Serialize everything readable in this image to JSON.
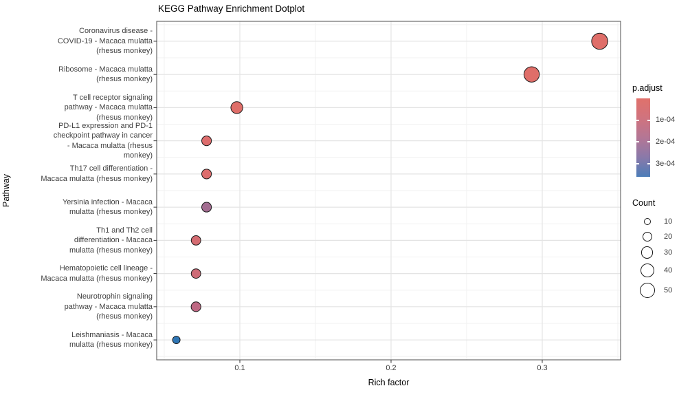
{
  "title": "KEGG Pathway Enrichment Dotplot",
  "x_axis": {
    "label": "Rich factor"
  },
  "y_axis": {
    "label": "Pathway"
  },
  "chart_data": {
    "type": "scatter",
    "title": "KEGG Pathway Enrichment Dotplot",
    "xlabel": "Rich factor",
    "ylabel": "Pathway",
    "xlim": [
      0.045,
      0.352
    ],
    "x_major_ticks": [
      0.1,
      0.2,
      0.3
    ],
    "x_tick_labels": [
      "0.1",
      "0.2",
      "0.3"
    ],
    "x_minor_ticks": [
      0.05,
      0.15,
      0.25,
      0.35
    ],
    "grid": true,
    "legend_position": "right",
    "points": [
      {
        "pathway": "Coronavirus disease - COVID-19 - Macaca mulatta (rhesus monkey)",
        "label_lines": [
          "Coronavirus disease -",
          "COVID-19 - Macaca mulatta",
          "(rhesus monkey)"
        ],
        "rich_factor": 0.338,
        "count": 55,
        "p_adjust": 2e-05,
        "color": "#DF6E69"
      },
      {
        "pathway": "Ribosome - Macaca mulatta (rhesus monkey)",
        "label_lines": [
          "Ribosome - Macaca mulatta",
          "(rhesus monkey)"
        ],
        "rich_factor": 0.293,
        "count": 50,
        "p_adjust": 2e-05,
        "color": "#DF6E69"
      },
      {
        "pathway": "T cell receptor signaling pathway - Macaca mulatta (rhesus monkey)",
        "label_lines": [
          "T cell receptor signaling",
          "pathway - Macaca mulatta",
          "(rhesus monkey)"
        ],
        "rich_factor": 0.098,
        "count": 30,
        "p_adjust": 2e-05,
        "color": "#DF6E69"
      },
      {
        "pathway": "PD-L1 expression and PD-1 checkpoint pathway in cancer - Macaca mulatta (rhesus monkey)",
        "label_lines": [
          "PD-L1 expression and PD-1",
          "checkpoint pathway in cancer",
          "- Macaca mulatta (rhesus",
          "monkey)"
        ],
        "rich_factor": 0.078,
        "count": 20,
        "p_adjust": 2.5e-05,
        "color": "#DD6D6D"
      },
      {
        "pathway": "Th17 cell differentiation - Macaca mulatta (rhesus monkey)",
        "label_lines": [
          "Th17 cell differentiation -",
          "Macaca mulatta (rhesus monkey)"
        ],
        "rich_factor": 0.078,
        "count": 20,
        "p_adjust": 2.5e-05,
        "color": "#DD6D6D"
      },
      {
        "pathway": "Yersinia infection - Macaca mulatta (rhesus monkey)",
        "label_lines": [
          "Yersinia infection - Macaca",
          "mulatta (rhesus monkey)"
        ],
        "rich_factor": 0.078,
        "count": 20,
        "p_adjust": 0.00018,
        "color": "#A26C90"
      },
      {
        "pathway": "Th1 and Th2 cell differentiation - Macaca mulatta (rhesus monkey)",
        "label_lines": [
          "Th1 and Th2 cell",
          "differentiation - Macaca",
          "mulatta (rhesus monkey)"
        ],
        "rich_factor": 0.071,
        "count": 19,
        "p_adjust": 5e-05,
        "color": "#D56C72"
      },
      {
        "pathway": "Hematopoietic cell lineage - Macaca mulatta (rhesus monkey)",
        "label_lines": [
          "Hematopoietic cell lineage -",
          "Macaca mulatta (rhesus monkey)"
        ],
        "rich_factor": 0.071,
        "count": 19,
        "p_adjust": 7e-05,
        "color": "#CE6B77"
      },
      {
        "pathway": "Neurotrophin signaling pathway - Macaca mulatta (rhesus monkey)",
        "label_lines": [
          "Neurotrophin signaling",
          "pathway - Macaca mulatta",
          "(rhesus monkey)"
        ],
        "rich_factor": 0.071,
        "count": 20,
        "p_adjust": 0.00013,
        "color": "#BE6883"
      },
      {
        "pathway": "Leishmaniasis - Macaca mulatta (rhesus monkey)",
        "label_lines": [
          "Leishmaniasis - Macaca",
          "mulatta (rhesus monkey)"
        ],
        "rich_factor": 0.058,
        "count": 12,
        "p_adjust": 0.00034,
        "color": "#2F76B5"
      }
    ]
  },
  "legends": {
    "p_adjust": {
      "title": "p.adjust",
      "domain": [
        0,
        0.00036
      ],
      "tick_values": [
        0.0001,
        0.0002,
        0.0003
      ],
      "tick_labels": [
        "1e-04",
        "2e-04",
        "3e-04"
      ],
      "gradient": [
        "#E0716B",
        "#D0737E",
        "#B47695",
        "#8A79A9",
        "#4C7DB8"
      ]
    },
    "count": {
      "title": "Count",
      "tick_values": [
        10,
        20,
        30,
        40,
        50
      ],
      "tick_labels": [
        "10",
        "20",
        "30",
        "40",
        "50"
      ]
    }
  },
  "colors": {
    "low_p": "#E0716B",
    "high_p": "#4C7DB8",
    "grid_major": "#E4E4E4",
    "grid_minor": "#F1F1F1",
    "panel_border": "#4D4D4D",
    "tick_text": "#404040"
  }
}
